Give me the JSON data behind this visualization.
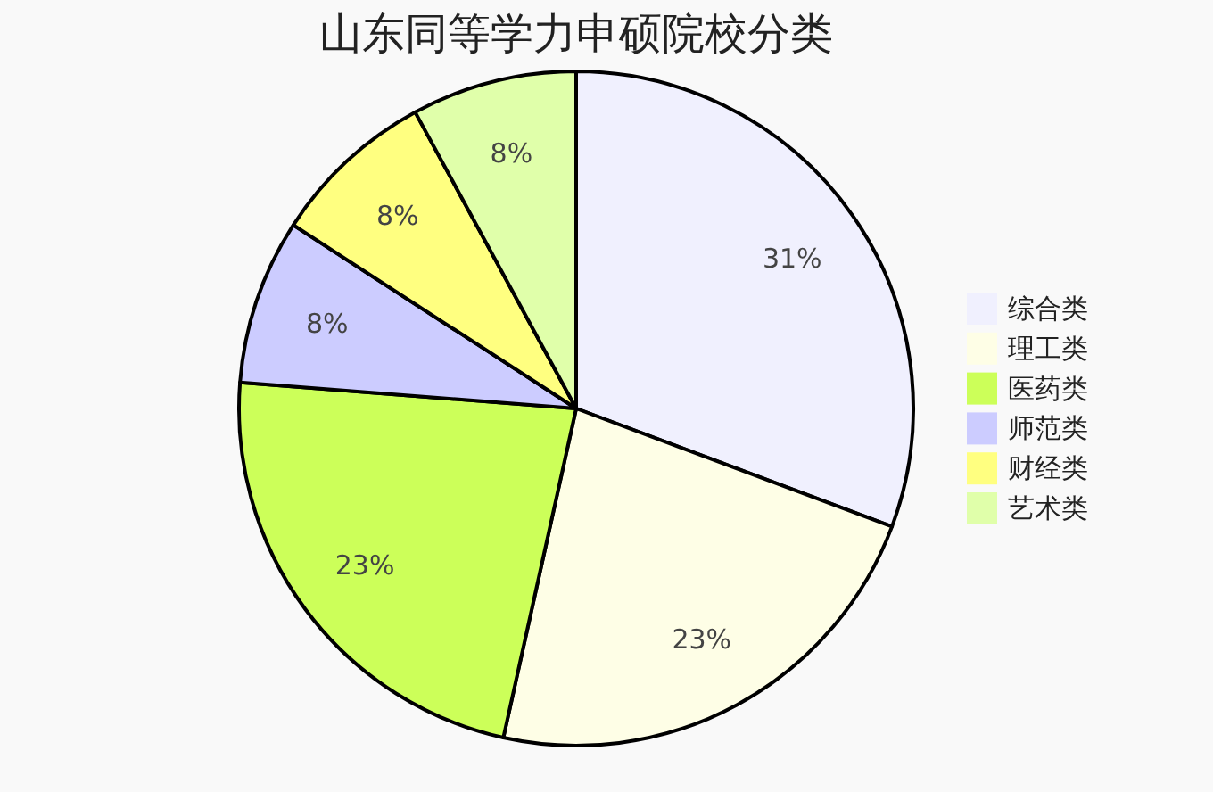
{
  "chart_data": {
    "type": "pie",
    "title": "山东同等学力申硕院校分类",
    "categories": [
      "综合类",
      "理工类",
      "医药类",
      "师范类",
      "财经类",
      "艺术类"
    ],
    "values": [
      31,
      23,
      23,
      8,
      8,
      8
    ],
    "value_labels": [
      "31%",
      "23%",
      "23%",
      "8%",
      "8%",
      "8%"
    ],
    "colors": [
      "#f0f0fe",
      "#fefee6",
      "#ccff59",
      "#ccccff",
      "#ffff80",
      "#e0ffaa"
    ],
    "legend": "right"
  }
}
